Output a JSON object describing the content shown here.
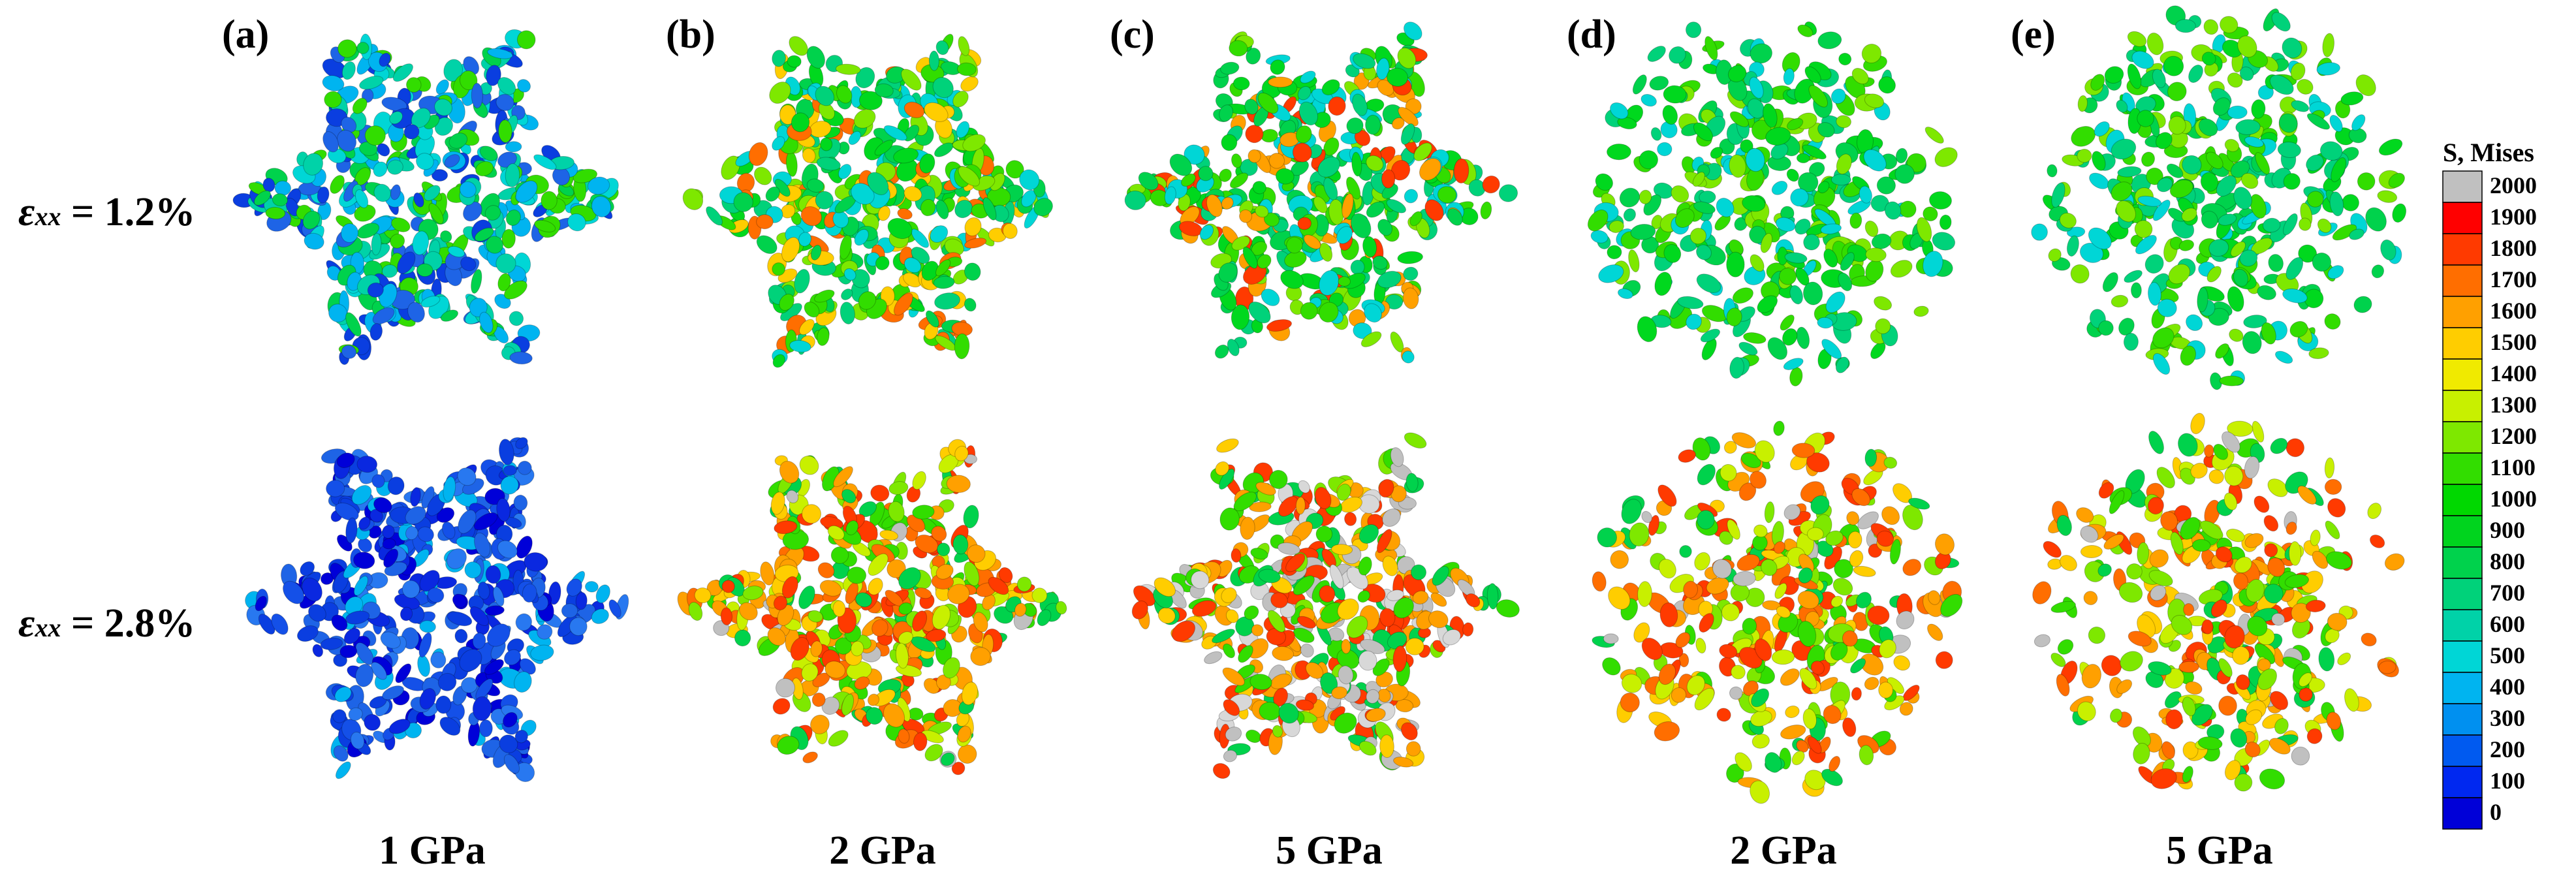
{
  "panels": [
    {
      "label": "(a)",
      "pressure": "1 GPa",
      "shape": "star"
    },
    {
      "label": "(b)",
      "pressure": "2 GPa",
      "shape": "star"
    },
    {
      "label": "(c)",
      "pressure": "5 GPa",
      "shape": "star"
    },
    {
      "label": "(d)",
      "pressure": "2 GPa",
      "shape": "sphere"
    },
    {
      "label": "(e)",
      "pressure": "5 GPa",
      "shape": "sphere"
    }
  ],
  "rows": [
    {
      "symbol": "ε",
      "subscript": "xx",
      "value": "= 1.2%"
    },
    {
      "symbol": "ε",
      "subscript": "xx",
      "value": "= 2.8%"
    }
  ],
  "legend": {
    "title": "S, Mises",
    "ticks": [
      "2000",
      "1900",
      "1800",
      "1700",
      "1600",
      "1500",
      "1400",
      "1300",
      "1200",
      "1100",
      "1000",
      "900",
      "800",
      "700",
      "600",
      "500",
      "400",
      "300",
      "200",
      "100",
      "0"
    ],
    "colors": [
      "#c0c0c0",
      "#ff0000",
      "#ff3a00",
      "#ff6e00",
      "#ffa000",
      "#ffcd00",
      "#f0ea00",
      "#c8f000",
      "#7ee800",
      "#32dd00",
      "#00d800",
      "#00d41e",
      "#00d24c",
      "#00d27a",
      "#00d2a8",
      "#00d6d6",
      "#00b4f0",
      "#0090f0",
      "#005af0",
      "#0028f0",
      "#0000d8"
    ]
  }
}
